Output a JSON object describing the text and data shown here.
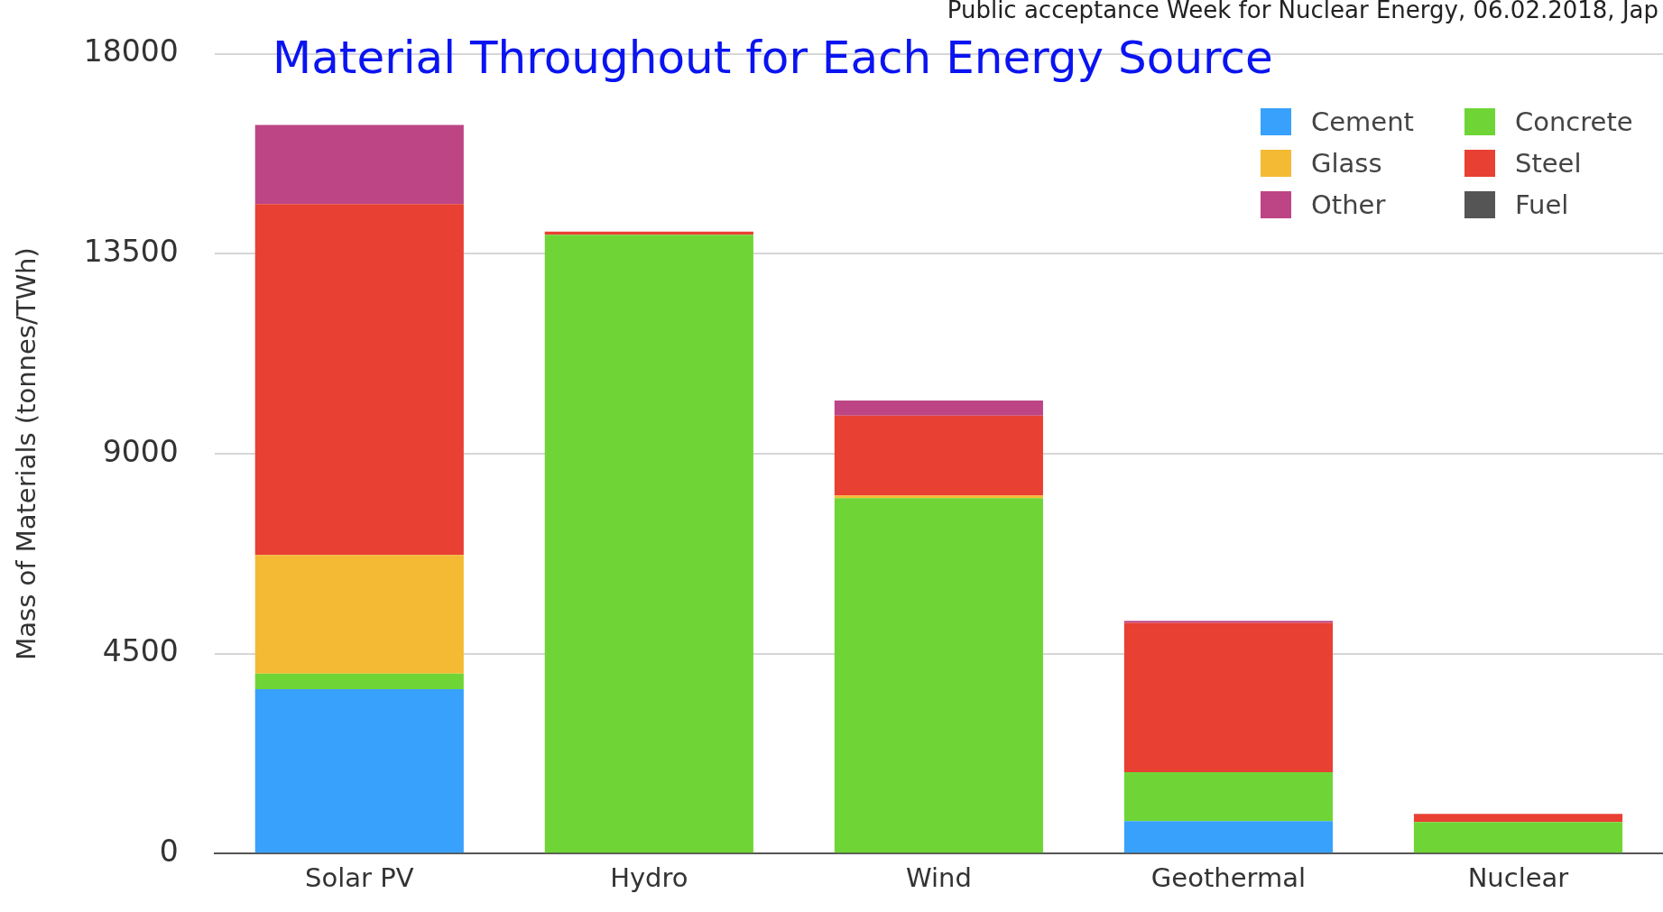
{
  "chart_data": {
    "type": "bar",
    "title": "Material Throughout for Each Energy Source",
    "ylabel": "Mass of Materials (tonnes/TWh)",
    "annotations": [
      "Public acceptance Week for Nuclear Energy, 06.02.2018, Jap"
    ],
    "categories": [
      "Solar PV",
      "Hydro",
      "Wind",
      "Geothermal",
      "Nuclear"
    ],
    "stacked": true,
    "series": [
      {
        "name": "Cement",
        "color": "#38a1fb",
        "values": [
          3700,
          0,
          0,
          730,
          0
        ]
      },
      {
        "name": "Concrete",
        "color": "#6fd536",
        "values": [
          350,
          13930,
          8000,
          1100,
          710
        ]
      },
      {
        "name": "Glass",
        "color": "#f5ba33",
        "values": [
          2670,
          0,
          60,
          0,
          0
        ]
      },
      {
        "name": "Steel",
        "color": "#e84033",
        "values": [
          7900,
          70,
          1800,
          3360,
          180
        ]
      },
      {
        "name": "Other",
        "color": "#bd4585",
        "values": [
          1780,
          0,
          340,
          50,
          0
        ]
      },
      {
        "name": "Fuel",
        "color": "#555555",
        "values": [
          0,
          0,
          0,
          0,
          0
        ]
      }
    ],
    "ylim": [
      0,
      18000
    ],
    "yticks": [
      0,
      4500,
      9000,
      13500,
      18000
    ],
    "grid": "y",
    "legend": "top right"
  }
}
